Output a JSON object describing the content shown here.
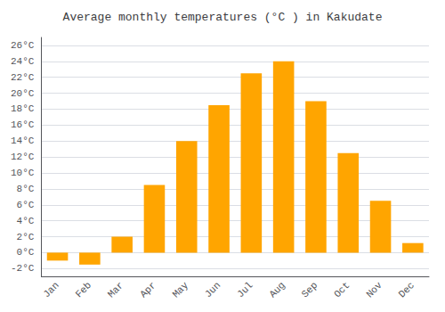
{
  "chart_data": {
    "type": "bar",
    "title": "Average monthly temperatures (°C ) in Kakudate",
    "categories": [
      "Jan",
      "Feb",
      "Mar",
      "Apr",
      "May",
      "Jun",
      "Jul",
      "Aug",
      "Sep",
      "Oct",
      "Nov",
      "Dec"
    ],
    "values": [
      -1.0,
      -1.5,
      2.0,
      8.5,
      14.0,
      18.5,
      22.5,
      24.0,
      19.0,
      12.5,
      6.5,
      1.2
    ],
    "color": "#FFA500",
    "ylim": [
      -3,
      27
    ],
    "yticks": [
      {
        "value": -2,
        "label": "-2°C"
      },
      {
        "value": 0,
        "label": "0°C"
      },
      {
        "value": 2,
        "label": "2°C"
      },
      {
        "value": 4,
        "label": "4°C"
      },
      {
        "value": 6,
        "label": "6°C"
      },
      {
        "value": 8,
        "label": "8°C"
      },
      {
        "value": 10,
        "label": "10°C"
      },
      {
        "value": 12,
        "label": "12°C"
      },
      {
        "value": 14,
        "label": "14°C"
      },
      {
        "value": 16,
        "label": "16°C"
      },
      {
        "value": 18,
        "label": "18°C"
      },
      {
        "value": 20,
        "label": "20°C"
      },
      {
        "value": 22,
        "label": "22°C"
      },
      {
        "value": 24,
        "label": "24°C"
      },
      {
        "value": 26,
        "label": "26°C"
      }
    ],
    "grid": true
  }
}
